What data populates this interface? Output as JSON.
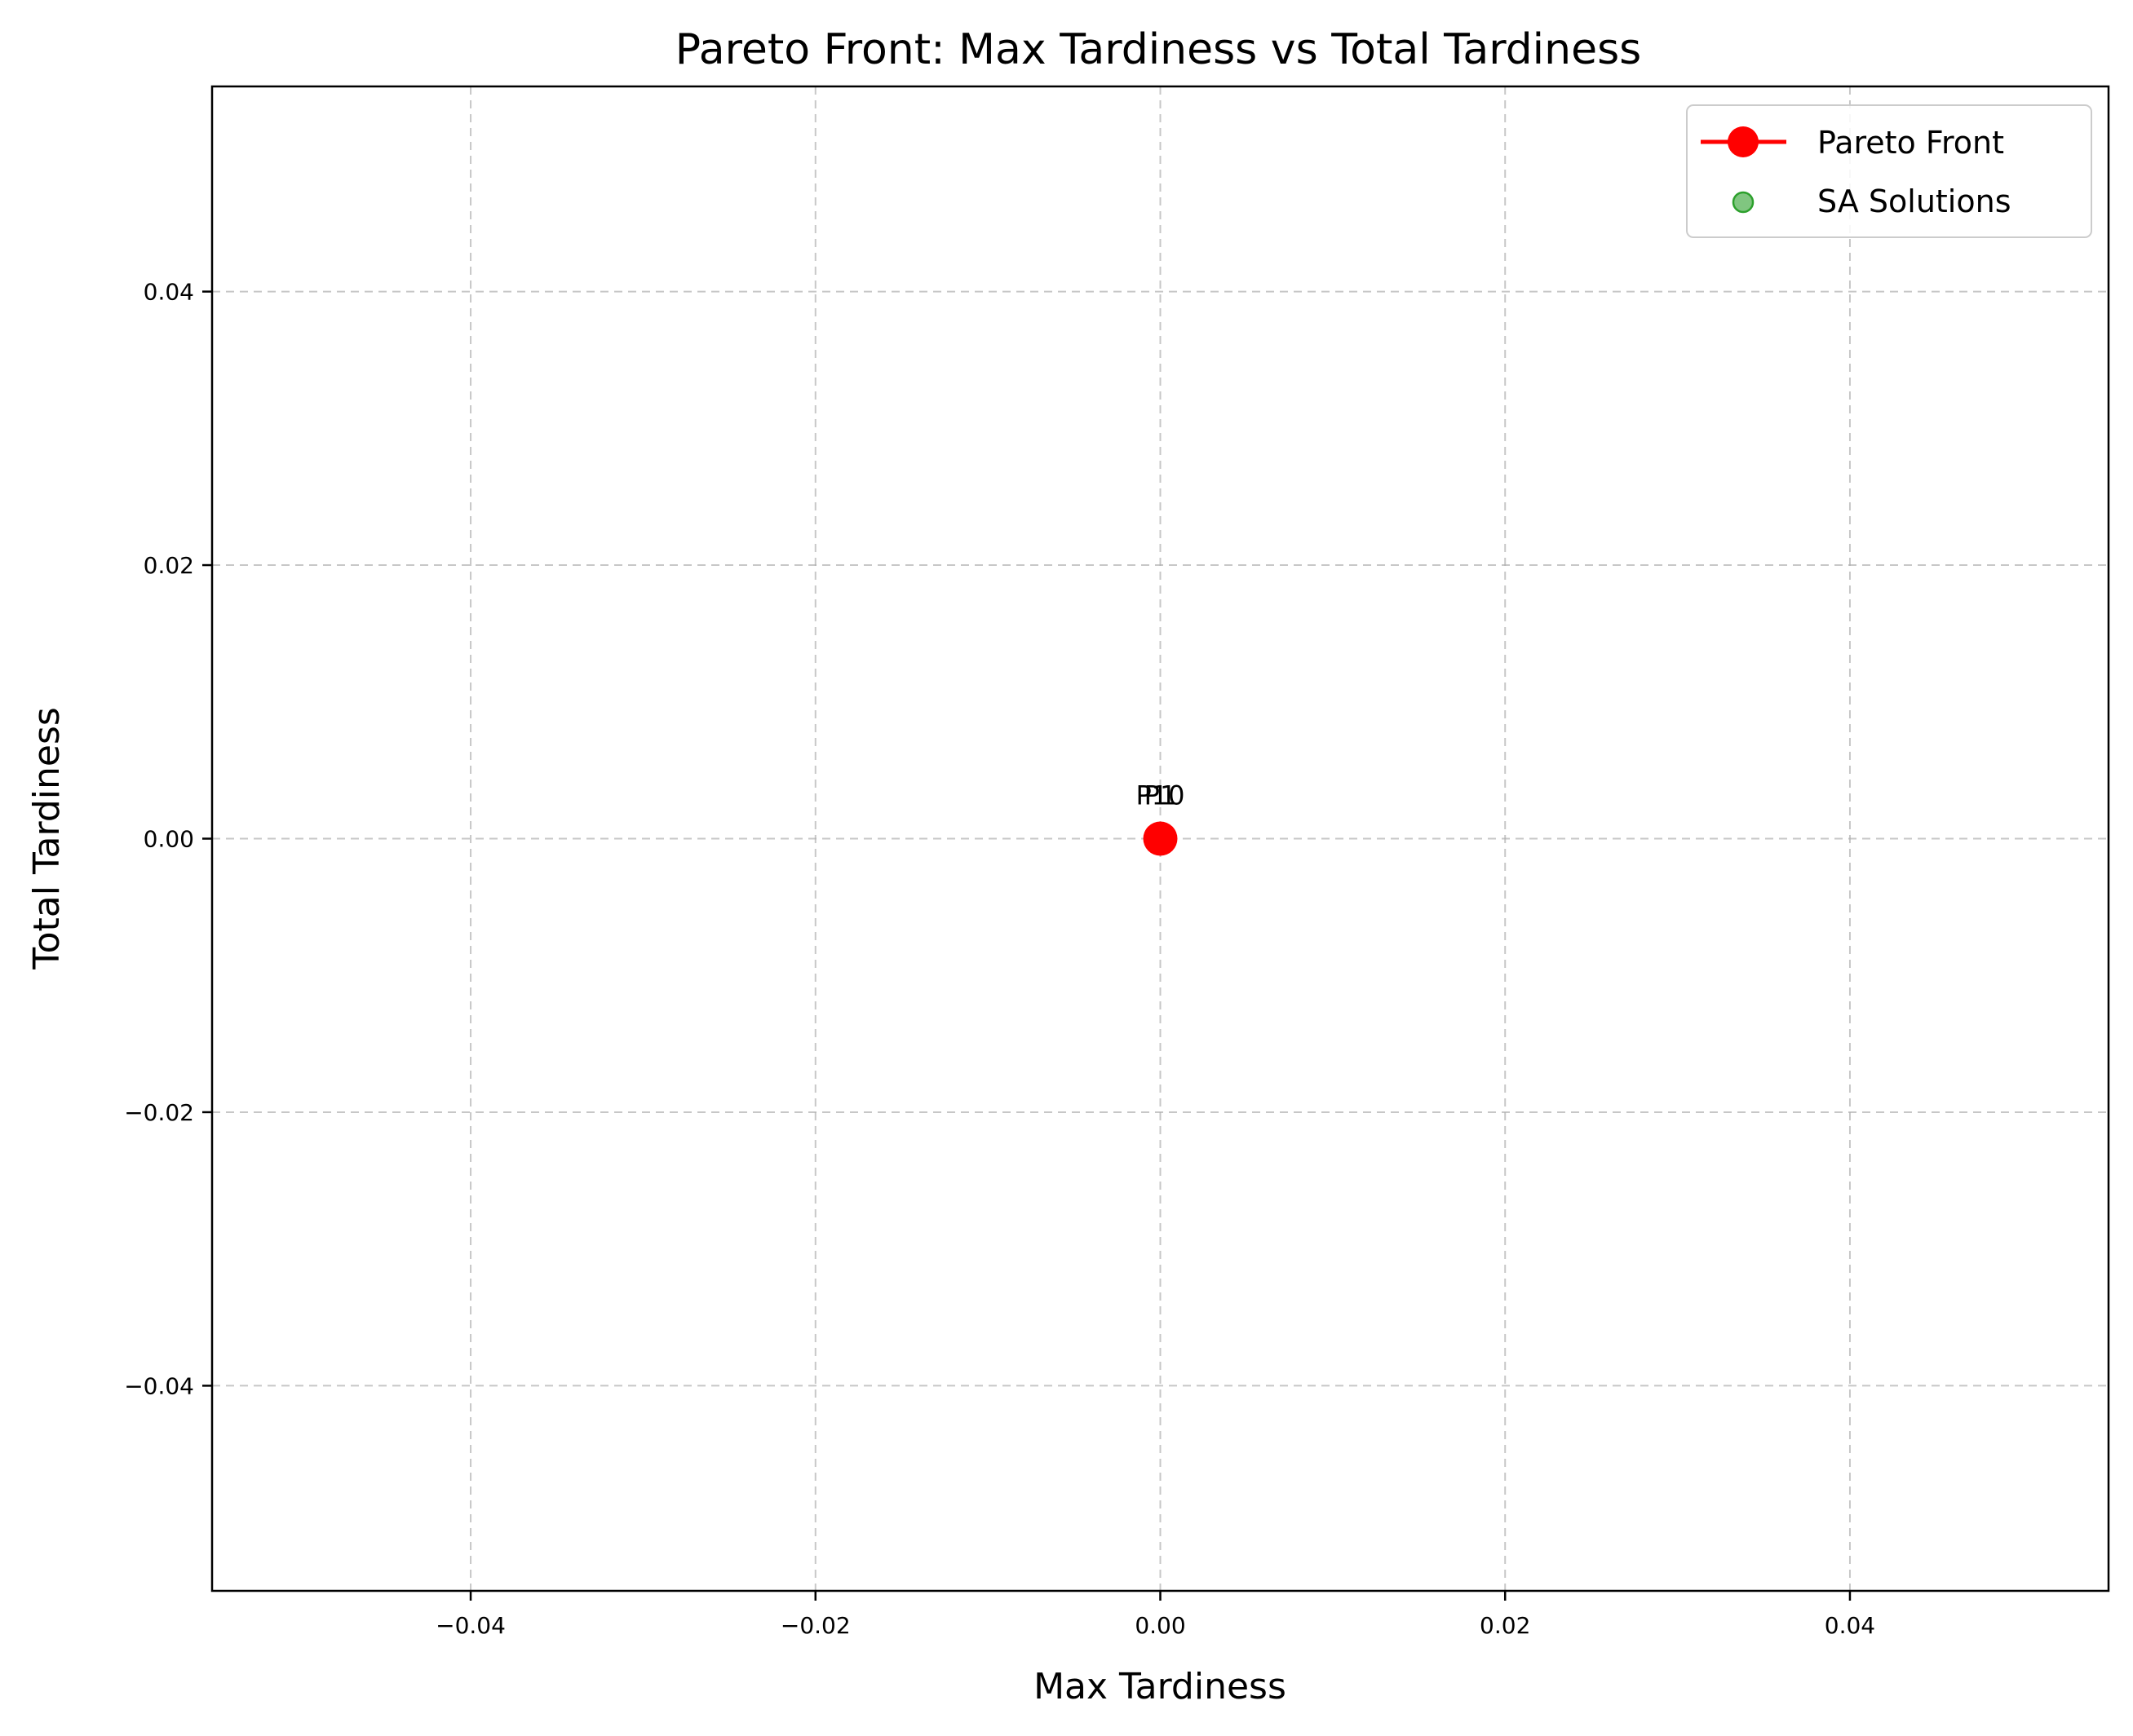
{
  "chart_data": {
    "type": "scatter",
    "title": "Pareto Front: Max Tardiness vs Total Tardiness",
    "xlabel": "Max Tardiness",
    "ylabel": "Total Tardiness",
    "xlim": [
      -0.055,
      0.055
    ],
    "ylim": [
      -0.055,
      0.055
    ],
    "xticks": [
      -0.04,
      -0.02,
      0.0,
      0.02,
      0.04
    ],
    "xtick_labels": [
      "−0.04",
      "−0.02",
      "0.00",
      "0.02",
      "0.04"
    ],
    "yticks": [
      -0.04,
      -0.02,
      0.0,
      0.02,
      0.04
    ],
    "ytick_labels": [
      "−0.04",
      "−0.02",
      "0.00",
      "0.02",
      "0.04"
    ],
    "grid": true,
    "legend_position": "top-right",
    "series": [
      {
        "name": "Pareto Front",
        "kind": "line-marker",
        "color": "#ff0000",
        "x": [
          0.0
        ],
        "y": [
          0.0
        ]
      },
      {
        "name": "SA Solutions",
        "kind": "scatter",
        "color": "#2ca02c",
        "x": [],
        "y": []
      }
    ],
    "annotations": [
      {
        "text": "P1",
        "x": 0.0,
        "y": 0.0
      },
      {
        "text": "P10",
        "x": 0.0,
        "y": 0.0
      }
    ]
  }
}
